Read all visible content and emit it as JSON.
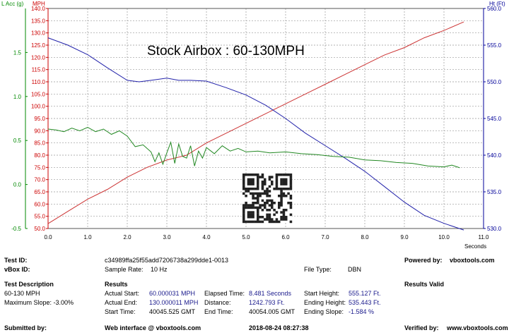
{
  "chart_data": {
    "type": "line",
    "title": "Stock Airbox : 60-130MPH",
    "xlabel": "Seconds",
    "x_ticks": [
      "0.0",
      "1.0",
      "2.0",
      "3.0",
      "4.0",
      "5.0",
      "6.0",
      "7.0",
      "8.0",
      "9.0",
      "10.0",
      "11.0"
    ],
    "xlim": [
      0,
      11
    ],
    "grid": true,
    "axes": {
      "lacc": {
        "label": "L Acc (g)",
        "color": "#008800",
        "lim": [
          -0.5,
          2.0
        ],
        "ticks": [
          "-0.5",
          "0.0",
          "0.5",
          "1.0",
          "1.5"
        ]
      },
      "mph": {
        "label": "MPH",
        "color": "#cc0000",
        "lim": [
          50,
          140
        ],
        "ticks": [
          "50.0",
          "55.0",
          "60.0",
          "65.0",
          "70.0",
          "75.0",
          "80.0",
          "85.0",
          "90.0",
          "95.0",
          "100.0",
          "105.0",
          "110.0",
          "115.0",
          "120.0",
          "125.0",
          "130.0",
          "135.0",
          "140.0"
        ]
      },
      "ht": {
        "label": "Ht (Ft)",
        "color": "#000099",
        "lim": [
          530,
          560
        ],
        "ticks": [
          "530.0",
          "535.0",
          "540.0",
          "545.0",
          "550.0",
          "555.0",
          "560.0"
        ]
      }
    },
    "series": [
      {
        "axis": "mph",
        "color": "#cc3333",
        "x": [
          0,
          0.5,
          1.0,
          1.5,
          2.0,
          2.5,
          3.0,
          3.5,
          4.0,
          4.5,
          5.0,
          5.5,
          6.0,
          6.5,
          7.0,
          7.5,
          8.0,
          8.5,
          9.0,
          9.5,
          10.0,
          10.5
        ],
        "y": [
          52,
          57,
          62,
          66,
          71,
          75,
          78,
          80,
          85,
          89,
          93,
          97,
          101,
          105,
          109,
          113,
          117,
          121,
          124,
          128,
          131,
          134.5
        ]
      },
      {
        "axis": "ht",
        "color": "#2222aa",
        "x": [
          0,
          0.5,
          1.0,
          1.5,
          2.0,
          2.3,
          2.6,
          3.0,
          3.3,
          3.6,
          4.0,
          4.5,
          5.0,
          5.5,
          6.0,
          6.5,
          7.0,
          7.5,
          8.0,
          8.5,
          9.0,
          9.5,
          10.0,
          10.5
        ],
        "y": [
          556.0,
          555.0,
          553.7,
          551.9,
          550.2,
          550.0,
          550.2,
          550.5,
          550.2,
          550.2,
          550.1,
          549.2,
          548.2,
          546.8,
          545.0,
          543.0,
          541.3,
          539.6,
          537.8,
          535.7,
          533.6,
          531.8,
          530.7,
          529.8
        ]
      },
      {
        "axis": "lacc",
        "color": "#228822",
        "x": [
          0,
          0.2,
          0.4,
          0.6,
          0.8,
          1.0,
          1.2,
          1.4,
          1.6,
          1.8,
          2.0,
          2.2,
          2.4,
          2.6,
          2.7,
          2.8,
          2.9,
          3.0,
          3.1,
          3.2,
          3.3,
          3.4,
          3.5,
          3.6,
          3.7,
          3.8,
          3.9,
          4.0,
          4.2,
          4.4,
          4.6,
          4.8,
          5.0,
          5.3,
          5.6,
          6.0,
          6.4,
          6.8,
          7.2,
          7.6,
          8.0,
          8.4,
          8.8,
          9.2,
          9.6,
          10.0,
          10.2,
          10.4
        ],
        "y": [
          0.63,
          0.62,
          0.6,
          0.64,
          0.61,
          0.65,
          0.6,
          0.63,
          0.57,
          0.61,
          0.55,
          0.43,
          0.45,
          0.37,
          0.26,
          0.36,
          0.23,
          0.36,
          0.48,
          0.24,
          0.46,
          0.32,
          0.3,
          0.44,
          0.21,
          0.38,
          0.3,
          0.42,
          0.35,
          0.44,
          0.38,
          0.41,
          0.37,
          0.38,
          0.36,
          0.37,
          0.35,
          0.34,
          0.32,
          0.31,
          0.28,
          0.27,
          0.25,
          0.24,
          0.21,
          0.2,
          0.22,
          0.19
        ]
      }
    ]
  },
  "panel": {
    "test_id_label": "Test ID:",
    "test_id_value": "c34989ffa25f55add7206738a299dde1-0013",
    "powered_by_label": "Powered by:",
    "powered_by_value": "vboxtools.com",
    "vbox_id_label": "vBox ID:",
    "sample_rate_label": "Sample Rate:",
    "sample_rate_value": "10 Hz",
    "file_type_label": "File Type:",
    "file_type_value": "DBN",
    "test_desc_label": "Test Description",
    "test_desc_value": "60-130 MPH",
    "max_slope": "Maximum Slope:  -3.00%",
    "results_label": "Results",
    "results_valid": "Results Valid",
    "actual_start_label": "Actual Start:",
    "actual_start_value": "60.000031 MPH",
    "elapsed_label": "Elapsed Time:",
    "elapsed_value": "8.481 Seconds",
    "start_height_label": "Start Height:",
    "start_height_value": "555.127 Ft.",
    "actual_end_label": "Actual End:",
    "actual_end_value": "130.000011 MPH",
    "distance_label": "Distance:",
    "distance_value": "1242.793 Ft.",
    "end_height_label": "Ending Height:",
    "end_height_value": "535.443 Ft.",
    "start_time_label": "Start Time:",
    "start_time_value": "40045.525 GMT",
    "end_time_label": "End Time:",
    "end_time_value": "40054.005 GMT",
    "end_slope_label": "Ending Slope:",
    "end_slope_value": "-1.584 %",
    "submitted_label": "Submitted by:",
    "web_interface": "Web interface @ vboxtools.com",
    "datetime": "2018-08-24 08:27:38",
    "verified_label": "Verified by:",
    "verified_value": "www.vboxtools.com"
  }
}
